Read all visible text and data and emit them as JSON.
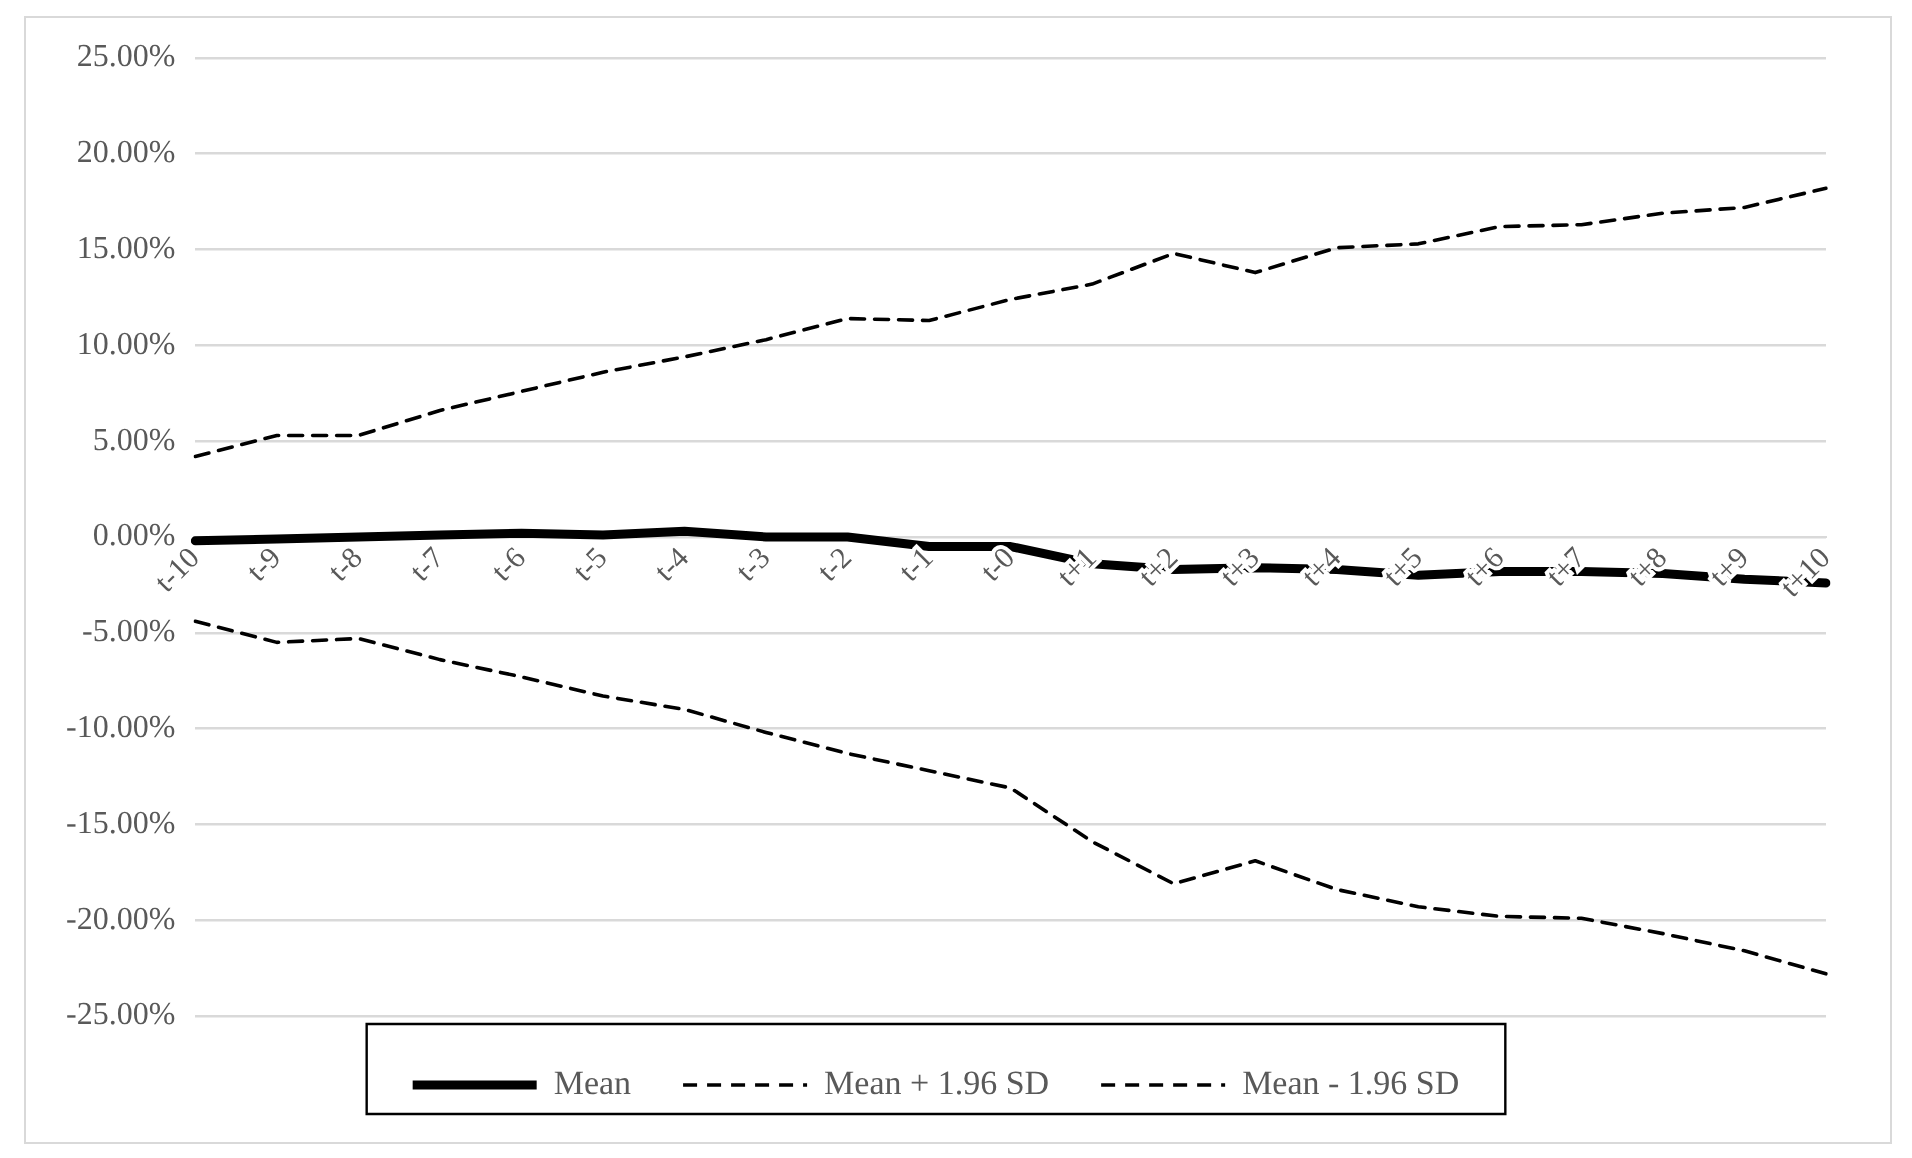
{
  "chart_data": {
    "type": "line",
    "categories": [
      "t-10",
      "t-9",
      "t-8",
      "t-7",
      "t-6",
      "t-5",
      "t-4",
      "t-3",
      "t-2",
      "t-1",
      "t-0",
      "t+1",
      "t+2",
      "t+3",
      "t+4",
      "t+5",
      "t+6",
      "t+7",
      "t+8",
      "t+9",
      "t+10"
    ],
    "series": [
      {
        "name": "Mean",
        "color": "#000000",
        "line_style": "solid",
        "values": [
          -0.2,
          -0.1,
          0,
          0.1,
          0.2,
          0.1,
          0.3,
          0,
          0,
          -0.5,
          -0.5,
          -1.4,
          -1.7,
          -1.6,
          -1.7,
          -2.0,
          -1.8,
          -1.8,
          -1.9,
          -2.2,
          -2.4
        ]
      },
      {
        "name": "Mean + 1.96 SD",
        "color": "#000000",
        "line_style": "dashed",
        "values": [
          4.2,
          5.3,
          5.3,
          6.6,
          7.6,
          8.6,
          9.4,
          10.3,
          11.4,
          11.3,
          12.4,
          13.2,
          14.8,
          13.8,
          15.1,
          15.3,
          16.2,
          16.3,
          16.9,
          17.2,
          18.2
        ]
      },
      {
        "name": "Mean - 1.96 SD",
        "color": "#000000",
        "line_style": "dashed",
        "values": [
          -4.4,
          -5.5,
          -5.3,
          -6.4,
          -7.3,
          -8.3,
          -9.0,
          -10.2,
          -11.3,
          -12.2,
          -13.1,
          -15.9,
          -18.1,
          -16.9,
          -18.4,
          -19.3,
          -19.8,
          -19.9,
          -20.7,
          -21.6,
          -22.8
        ]
      }
    ],
    "ylim": [
      -25,
      25
    ],
    "yticks": [
      {
        "value": -25,
        "label": "-25.00%"
      },
      {
        "value": -20,
        "label": "-20.00%"
      },
      {
        "value": -15,
        "label": "-15.00%"
      },
      {
        "value": -10,
        "label": "-10.00%"
      },
      {
        "value": -5,
        "label": "-5.00%"
      },
      {
        "value": 0,
        "label": "0.00%"
      },
      {
        "value": 5,
        "label": "5.00%"
      },
      {
        "value": 10,
        "label": "10.00%"
      },
      {
        "value": 15,
        "label": "15.00%"
      },
      {
        "value": 20,
        "label": "20.00%"
      },
      {
        "value": 25,
        "label": "25.00%"
      }
    ],
    "grid": "y",
    "legend": "bottom",
    "marker": "none"
  }
}
